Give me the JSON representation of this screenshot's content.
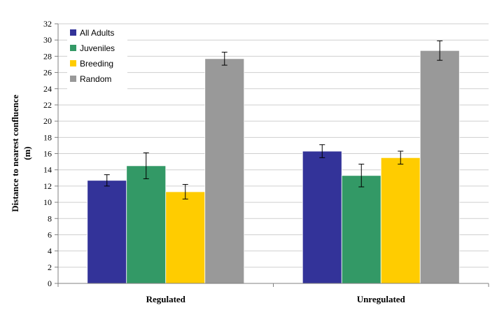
{
  "chart_data": {
    "type": "bar",
    "categories": [
      "Regulated",
      "Unregulated"
    ],
    "series": [
      {
        "name": "All Adults",
        "values": [
          12.7,
          16.3
        ],
        "errors": [
          0.7,
          0.8
        ],
        "color": "#333399"
      },
      {
        "name": "Juveniles",
        "values": [
          14.5,
          13.3
        ],
        "errors": [
          1.6,
          1.4
        ],
        "color": "#339966"
      },
      {
        "name": "Breeding",
        "values": [
          11.3,
          15.5
        ],
        "errors": [
          0.9,
          0.8
        ],
        "color": "#ffcc00"
      },
      {
        "name": "Random",
        "values": [
          27.7,
          28.7
        ],
        "errors": [
          0.8,
          1.2
        ],
        "color": "#999999"
      }
    ],
    "ylabel_line1": "Distance to nearest confluence",
    "ylabel_line2": "(m)",
    "ylim": [
      0,
      32
    ],
    "yticks": [
      "0",
      "2",
      "4",
      "6",
      "8",
      "10",
      "12",
      "14",
      "16",
      "18",
      "20",
      "22",
      "24",
      "26",
      "28",
      "30",
      "32"
    ],
    "grid": true,
    "legend_position": "top-left"
  }
}
